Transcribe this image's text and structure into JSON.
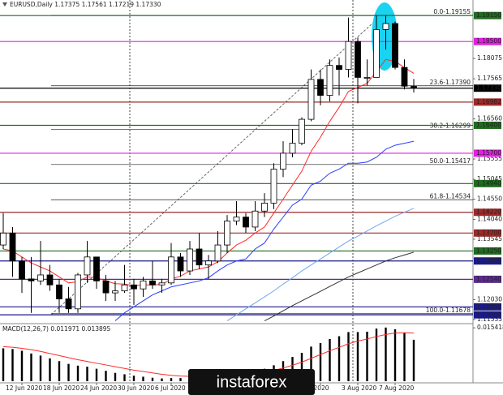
{
  "chart_data": {
    "type": "candlestick",
    "title": "EURUSD,Daily 1.17375 1.17561 1.17219 1.17330",
    "categories": [
      null,
      null,
      "12 Jun 2020",
      null,
      null,
      null,
      "18 Jun 2020",
      null,
      null,
      null,
      "24 Jun 2020",
      null,
      null,
      null,
      "30 Jun 2020",
      null,
      null,
      null,
      "6 Jul 2020",
      null,
      null,
      null,
      null,
      null,
      null,
      null,
      null,
      null,
      null,
      null,
      null,
      null,
      null,
      null,
      "Jul 2020",
      null,
      null,
      null,
      "3 Aug 2020",
      null,
      null,
      null,
      "7 Aug 2020",
      null,
      null
    ],
    "ohlc": [
      [
        1.134,
        1.142,
        1.133,
        1.137
      ],
      [
        1.137,
        1.1385,
        1.126,
        1.13
      ],
      [
        1.13,
        1.131,
        1.122,
        1.1255
      ],
      [
        1.1255,
        1.131,
        1.117,
        1.125
      ],
      [
        1.125,
        1.135,
        1.124,
        1.1265
      ],
      [
        1.1265,
        1.129,
        1.1225,
        1.124
      ],
      [
        1.124,
        1.1255,
        1.117,
        1.1205
      ],
      [
        1.1205,
        1.1235,
        1.117,
        1.118
      ],
      [
        1.118,
        1.127,
        1.117,
        1.1265
      ],
      [
        1.1265,
        1.135,
        1.1245,
        1.131
      ],
      [
        1.131,
        1.131,
        1.123,
        1.125
      ],
      [
        1.125,
        1.1265,
        1.12,
        1.122
      ],
      [
        1.122,
        1.125,
        1.12,
        1.1225
      ],
      [
        1.1225,
        1.129,
        1.122,
        1.124
      ],
      [
        1.124,
        1.1255,
        1.119,
        1.123
      ],
      [
        1.123,
        1.126,
        1.121,
        1.125
      ],
      [
        1.125,
        1.13,
        1.123,
        1.124
      ],
      [
        1.124,
        1.1255,
        1.122,
        1.1245
      ],
      [
        1.1245,
        1.1345,
        1.124,
        1.131
      ],
      [
        1.131,
        1.132,
        1.126,
        1.1275
      ],
      [
        1.1275,
        1.135,
        1.1265,
        1.133
      ],
      [
        1.133,
        1.137,
        1.128,
        1.129
      ],
      [
        1.129,
        1.1315,
        1.1255,
        1.13
      ],
      [
        1.13,
        1.1375,
        1.1295,
        1.134
      ],
      [
        1.134,
        1.1415,
        1.132,
        1.14
      ],
      [
        1.14,
        1.145,
        1.139,
        1.141
      ],
      [
        1.141,
        1.142,
        1.137,
        1.1385
      ],
      [
        1.1385,
        1.145,
        1.1375,
        1.1425
      ],
      [
        1.1425,
        1.147,
        1.141,
        1.1445
      ],
      [
        1.1445,
        1.1545,
        1.143,
        1.153
      ],
      [
        1.153,
        1.16,
        1.151,
        1.157
      ],
      [
        1.157,
        1.163,
        1.156,
        1.1595
      ],
      [
        1.1595,
        1.166,
        1.159,
        1.1655
      ],
      [
        1.1655,
        1.178,
        1.165,
        1.1755
      ],
      [
        1.1755,
        1.178,
        1.169,
        1.1715
      ],
      [
        1.1715,
        1.1805,
        1.17,
        1.179
      ],
      [
        1.179,
        1.181,
        1.1715,
        1.178
      ],
      [
        1.178,
        1.191,
        1.176,
        1.185
      ],
      [
        1.185,
        1.186,
        1.1695,
        1.176
      ],
      [
        1.176,
        1.1805,
        1.174,
        1.176
      ],
      [
        1.176,
        1.1915,
        1.176,
        1.188
      ],
      [
        1.188,
        1.1915,
        1.183,
        1.1895
      ],
      [
        1.1895,
        1.19,
        1.178,
        1.1785
      ],
      [
        1.1785,
        1.1805,
        1.173,
        1.1738
      ],
      [
        1.17375,
        1.17561,
        1.17219,
        1.1733
      ]
    ],
    "up_color": "#ffffff",
    "down_color": "#000000",
    "series": [
      {
        "color": "#ff2a2a",
        "values": [
          1.133,
          1.1325,
          1.131,
          1.1295,
          1.1285,
          1.1275,
          1.126,
          1.1245,
          1.1248,
          1.126,
          1.1258,
          1.125,
          1.1243,
          1.1242,
          1.1238,
          1.124,
          1.124,
          1.1241,
          1.1255,
          1.1262,
          1.1275,
          1.128,
          1.1285,
          1.1298,
          1.132,
          1.134,
          1.1352,
          1.137,
          1.1385,
          1.142,
          1.1455,
          1.149,
          1.1525,
          1.1575,
          1.161,
          1.165,
          1.1685,
          1.1725,
          1.1735,
          1.1745,
          1.1775,
          1.1805,
          1.18,
          1.1785,
          1.177
        ]
      },
      {
        "color": "#2a3cff",
        "values": [
          null,
          null,
          null,
          null,
          null,
          null,
          null,
          null,
          null,
          null,
          null,
          null,
          1.115,
          1.117,
          1.1185,
          1.12,
          1.1215,
          1.1225,
          1.1235,
          1.124,
          1.1245,
          1.125,
          1.1258,
          1.1275,
          1.129,
          1.13,
          1.1305,
          1.133,
          1.1345,
          1.138,
          1.141,
          1.144,
          1.1455,
          1.149,
          1.15,
          1.152,
          1.153,
          1.1545,
          1.1545,
          1.1548,
          1.156,
          1.158,
          1.159,
          1.1595,
          1.16
        ]
      },
      {
        "color": "#6fa8f0",
        "values": [
          null,
          null,
          null,
          null,
          null,
          null,
          null,
          null,
          null,
          null,
          null,
          null,
          null,
          null,
          null,
          null,
          null,
          null,
          null,
          null,
          null,
          null,
          null,
          null,
          1.115,
          1.1165,
          1.118,
          1.1195,
          1.121,
          1.1225,
          1.1242,
          1.1258,
          1.1275,
          1.129,
          1.1305,
          1.132,
          1.1335,
          1.135,
          1.1362,
          1.1375,
          1.1388,
          1.14,
          1.1412,
          1.1422,
          1.1432
        ]
      },
      {
        "color": "#333333",
        "values": [
          null,
          null,
          null,
          null,
          null,
          null,
          null,
          null,
          null,
          null,
          null,
          null,
          null,
          null,
          null,
          null,
          null,
          null,
          null,
          null,
          null,
          null,
          null,
          null,
          null,
          null,
          null,
          null,
          1.115,
          1.1162,
          1.1175,
          1.1188,
          1.12,
          1.1212,
          1.1224,
          1.1236,
          1.1248,
          1.126,
          1.127,
          1.128,
          1.129,
          1.13,
          1.1308,
          1.1315,
          1.1322
        ]
      }
    ],
    "ylim": [
      1.1145,
      1.1954
    ],
    "yticks": [
      1.18075,
      1.17565,
      {
        "value": 1.1656,
        "label": "1.16560"
      },
      1.15555,
      1.15045,
      {
        "value": 1.1455,
        "label": "1.14550"
      },
      {
        "value": 1.1404,
        "label": "1.14040"
      },
      1.13545,
      {
        "value": 1.1203,
        "label": "1.12030"
      },
      1.11535
    ],
    "levels": [
      {
        "value": 1.1915,
        "label": "1.19150",
        "color": "#1f6b1f"
      },
      {
        "value": 1.185,
        "label": "1.18500",
        "color": "#e020e0"
      },
      {
        "value": 1.1733,
        "label": "1.17330",
        "color": "#000000"
      },
      {
        "value": 1.16982,
        "label": "1.16982",
        "color": "#9c2a2a"
      },
      {
        "value": 1.164,
        "label": "1.16400",
        "color": "#1f6b1f"
      },
      {
        "value": 1.157,
        "label": "1.15700",
        "color": "#e020e0"
      },
      {
        "value": 1.1494,
        "label": "1.14940",
        "color": "#1f6b1f"
      },
      {
        "value": 1.1422,
        "label": "1.14220",
        "color": "#9c2a2a"
      },
      {
        "value": 1.137,
        "label": "1.13700",
        "color": "#9c2a2a"
      },
      {
        "value": 1.1325,
        "label": "1.13250",
        "color": "#1f6b1f"
      },
      {
        "value": 1.13,
        "label": "1.13000",
        "color": "#1a1a8c"
      },
      {
        "value": 1.1254,
        "label": "1.12540",
        "color": "#5b2c8f"
      },
      {
        "value": 1.1185,
        "label": "1.11850",
        "color": "#1a1a8c"
      },
      {
        "value": 1.1165,
        "label": "1.11650",
        "color": "#1a1a8c"
      }
    ],
    "fibo": [
      {
        "value": 1.19155,
        "label": "0.0-1.19155"
      },
      {
        "value": 1.1739,
        "label": "23.6-1.17390"
      },
      {
        "value": 1.16299,
        "label": "38.2-1.16299"
      },
      {
        "value": 1.15417,
        "label": "50.0-1.15417"
      },
      {
        "value": 1.14534,
        "label": "61.8-1.14534"
      },
      {
        "value": 1.11678,
        "label": "100.0-1.11678"
      }
    ],
    "macd": {
      "title": "MACD(12,26,7) 0.011971 0.013895",
      "ylim": [
        0,
        0.0164
      ],
      "yticks": [
        0.015418
      ],
      "color": "#000000",
      "signal_color": "#ff2a2a",
      "values": [
        0.0095,
        0.0093,
        0.0088,
        0.008,
        0.0074,
        0.0066,
        0.0058,
        0.005,
        0.0045,
        0.0042,
        0.0036,
        0.003,
        0.0024,
        0.002,
        0.0016,
        0.0013,
        0.001,
        0.0008,
        0.0009,
        0.0009,
        0.001,
        0.001,
        0.0011,
        0.0013,
        0.0018,
        0.0023,
        0.0026,
        0.0031,
        0.0036,
        0.0046,
        0.0058,
        0.007,
        0.0082,
        0.01,
        0.011,
        0.0122,
        0.013,
        0.0142,
        0.0142,
        0.0143,
        0.0152,
        0.0155,
        0.015,
        0.014,
        0.011971
      ],
      "signal": [
        0.01,
        0.0098,
        0.0095,
        0.0091,
        0.0086,
        0.008,
        0.0074,
        0.0068,
        0.0062,
        0.0057,
        0.0052,
        0.0047,
        0.0042,
        0.0037,
        0.0032,
        0.0028,
        0.0024,
        0.002,
        0.0017,
        0.0015,
        0.0014,
        0.0013,
        0.0012,
        0.0012,
        0.0014,
        0.0016,
        0.0019,
        0.0022,
        0.0026,
        0.0031,
        0.0038,
        0.0046,
        0.0055,
        0.0066,
        0.0077,
        0.0088,
        0.0098,
        0.0108,
        0.0116,
        0.0122,
        0.0129,
        0.0135,
        0.0139,
        0.014,
        0.013895
      ]
    },
    "watermark": "instaforex"
  }
}
